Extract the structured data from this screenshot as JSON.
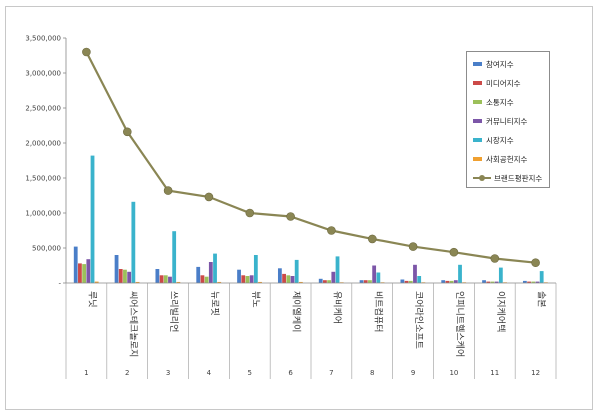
{
  "chart_data": {
    "type": "bar",
    "categories": [
      "루닛",
      "씨어스테크놀로지",
      "쓰리빌리언",
      "뉴로핏",
      "뷰노",
      "제이엘케이",
      "유비케어",
      "비트컴퓨터",
      "코어라인소프트",
      "인피니트헬스케어",
      "이지케어텍",
      "솔본"
    ],
    "category_numbers": [
      "1",
      "2",
      "3",
      "4",
      "5",
      "6",
      "7",
      "8",
      "9",
      "10",
      "11",
      "12"
    ],
    "ylim": [
      0,
      3500000
    ],
    "yticks": [
      0,
      500000,
      1000000,
      1500000,
      2000000,
      2500000,
      3000000,
      3500000
    ],
    "ytick_labels": [
      "-",
      "500,000",
      "1,000,000",
      "1,500,000",
      "2,000,000",
      "2,500,000",
      "3,000,000",
      "3,500,000"
    ],
    "grid": false,
    "legend_position": "top-right",
    "series": [
      {
        "name": "참여지수",
        "color": "#4a7ec8",
        "values": [
          520000,
          400000,
          200000,
          230000,
          190000,
          210000,
          60000,
          40000,
          50000,
          40000,
          40000,
          30000
        ]
      },
      {
        "name": "미디어지수",
        "color": "#cc4a48",
        "values": [
          280000,
          200000,
          110000,
          110000,
          110000,
          130000,
          40000,
          40000,
          30000,
          30000,
          20000,
          20000
        ]
      },
      {
        "name": "소통지수",
        "color": "#9cc05a",
        "values": [
          270000,
          190000,
          110000,
          90000,
          100000,
          110000,
          40000,
          40000,
          30000,
          30000,
          20000,
          20000
        ]
      },
      {
        "name": "커뮤니티지수",
        "color": "#7c56a8",
        "values": [
          340000,
          160000,
          90000,
          300000,
          110000,
          100000,
          160000,
          250000,
          260000,
          40000,
          20000,
          20000
        ]
      },
      {
        "name": "시장지수",
        "color": "#3ab3cc",
        "values": [
          1820000,
          1160000,
          740000,
          420000,
          400000,
          330000,
          380000,
          150000,
          100000,
          260000,
          220000,
          170000
        ]
      },
      {
        "name": "사회공헌지수",
        "color": "#f0a030",
        "values": [
          20000,
          15000,
          15000,
          15000,
          15000,
          15000,
          10000,
          10000,
          10000,
          10000,
          10000,
          10000
        ]
      },
      {
        "name": "브랜드평판지수",
        "color": "#8a8654",
        "type": "line",
        "values": [
          3300000,
          2160000,
          1320000,
          1230000,
          1000000,
          950000,
          750000,
          630000,
          520000,
          440000,
          350000,
          290000
        ]
      }
    ]
  }
}
